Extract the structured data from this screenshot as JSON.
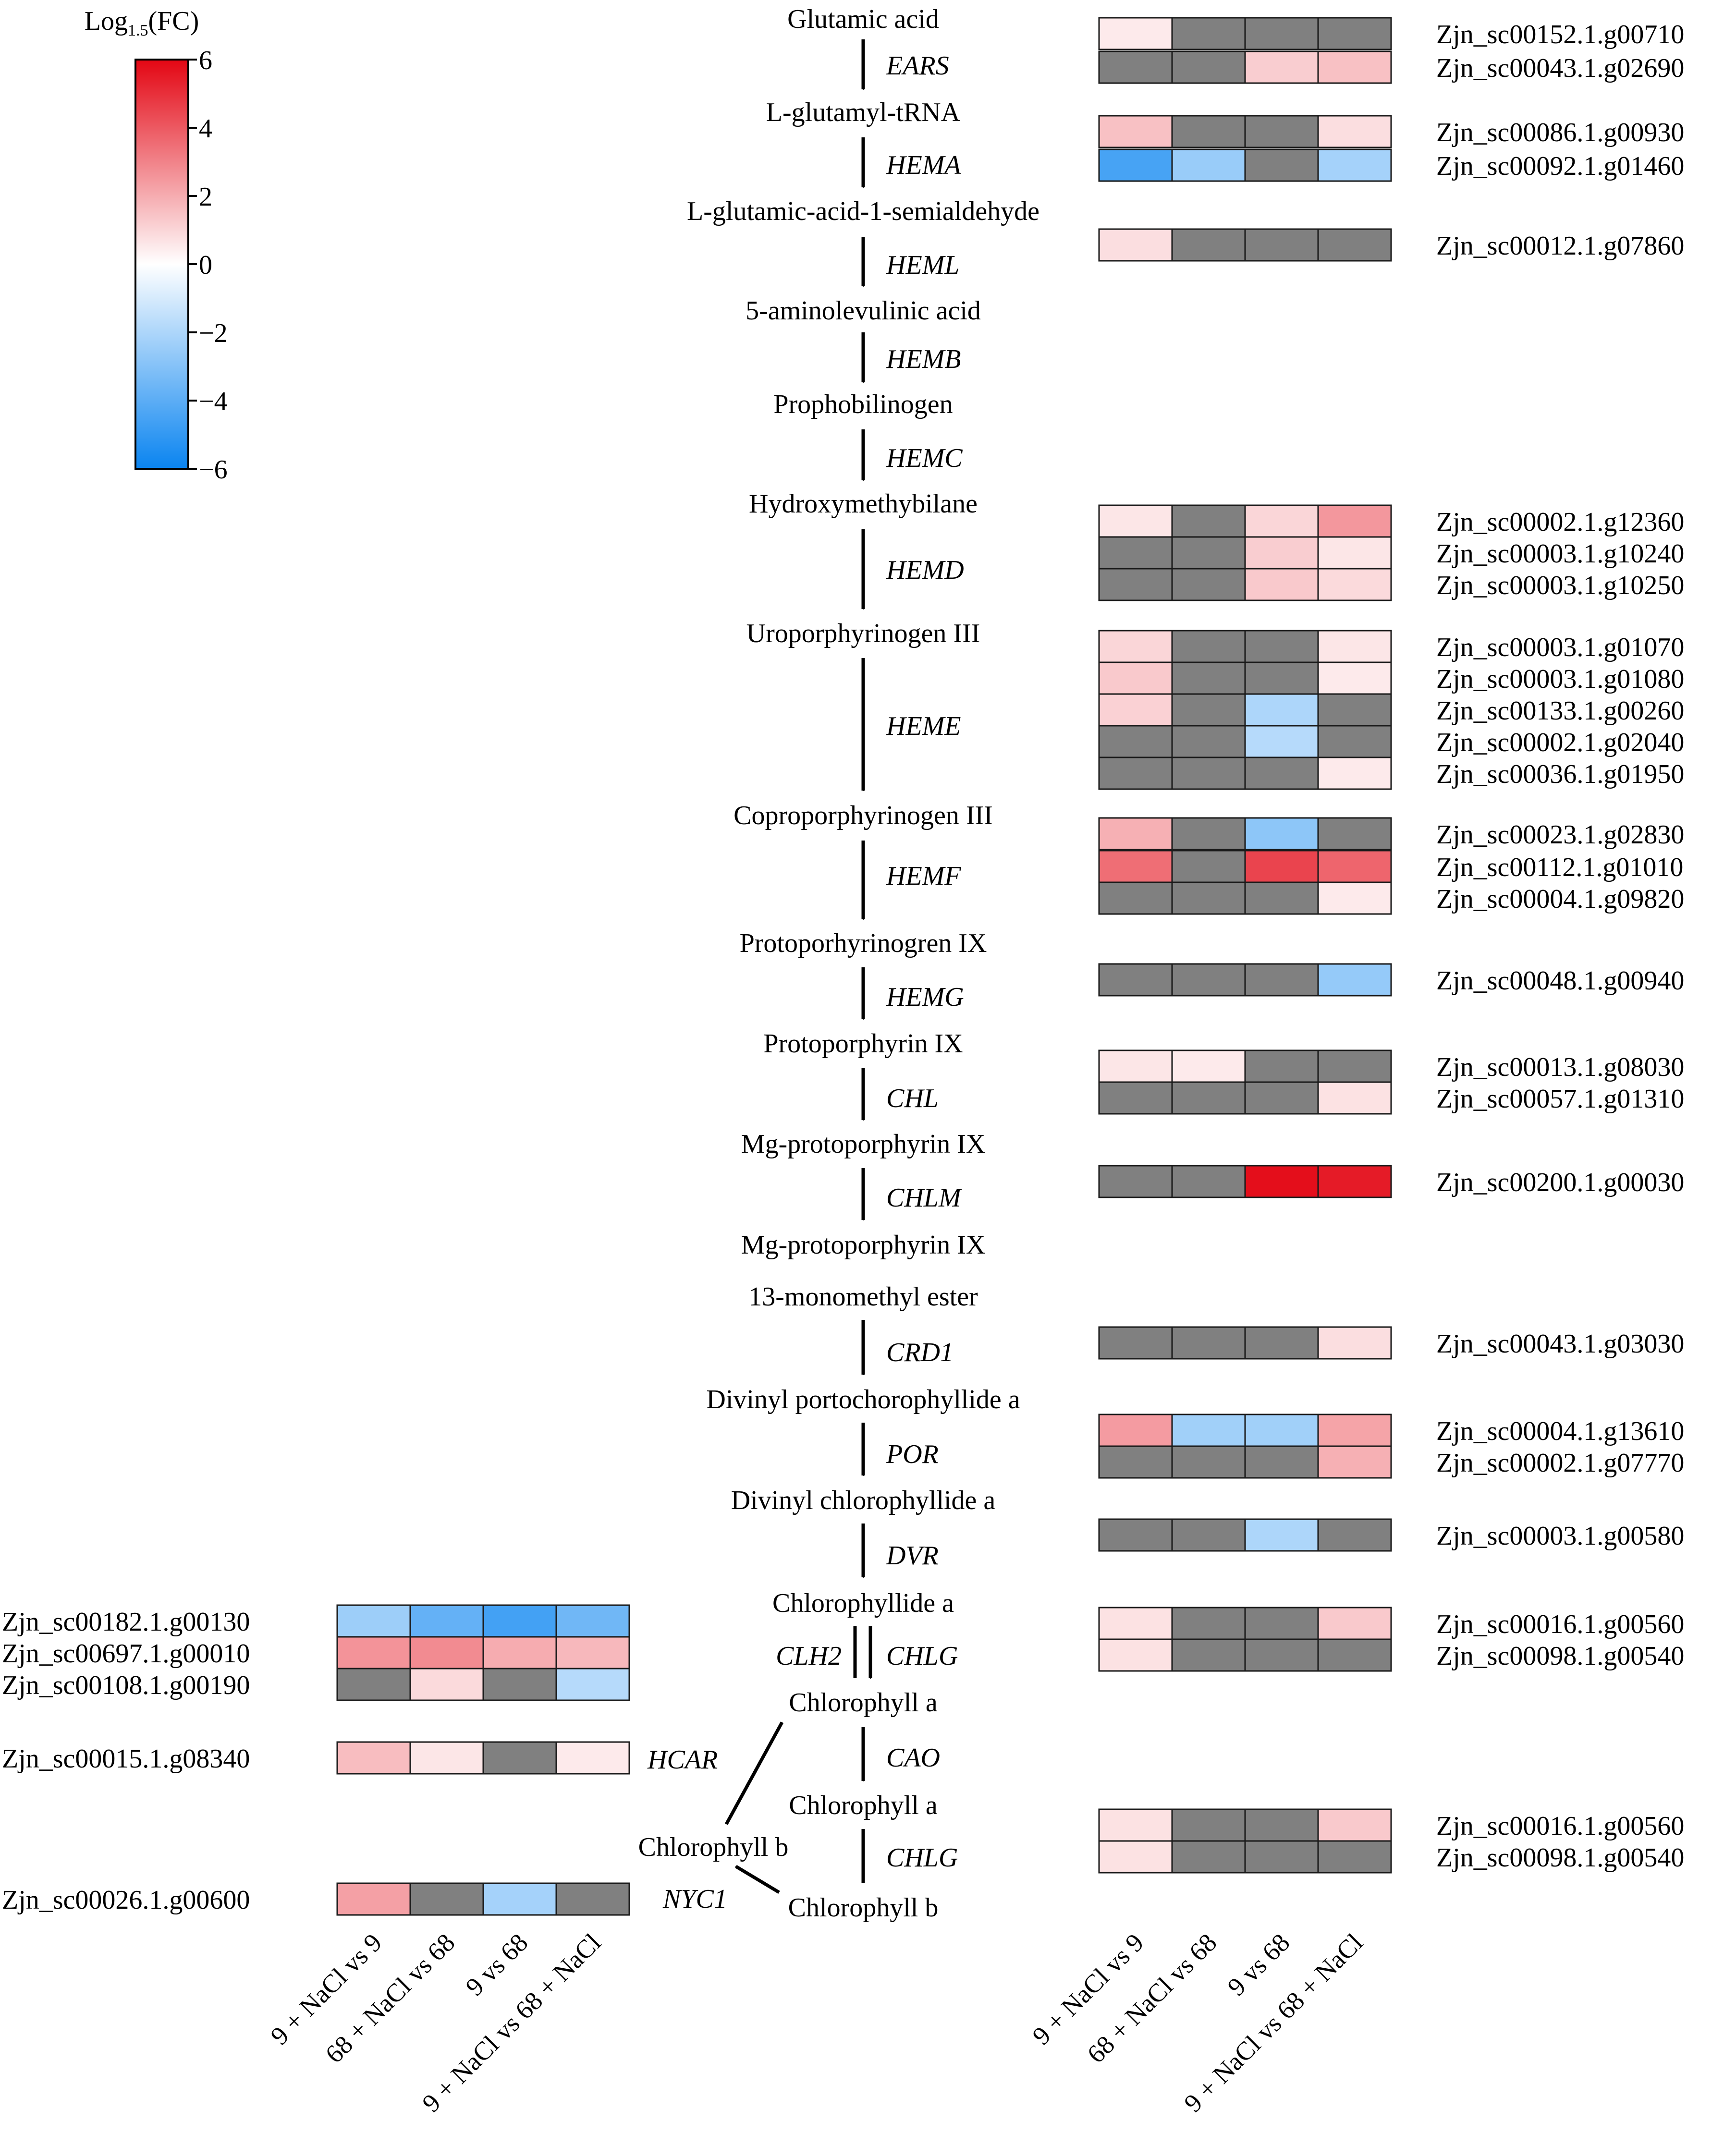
{
  "legend": {
    "title_main": "Log",
    "title_sub": "1.5",
    "title_suffix": "(FC)",
    "ticks": [
      6,
      4,
      2,
      0,
      -2,
      -4,
      -6
    ],
    "tick_labels": [
      "6",
      "4",
      "2",
      "0",
      "−2",
      "−4",
      "−6"
    ],
    "colors": {
      "high": "#e30613",
      "mid": "#ffffff",
      "low": "#0a84f0",
      "missing": "#808080"
    }
  },
  "metabolites": [
    "Glutamic acid",
    "L-glutamyl-tRNA",
    "L-glutamic-acid-1-semialdehyde",
    "5-aminolevulinic acid",
    "Prophobilinogen",
    "Hydroxymethybilane",
    "Uroporphyrinogen III",
    "Coproporphyrinogen III",
    "Protoporhyrinogren IX",
    "Protoporphyrin IX",
    "Mg-protoporphyrin IX",
    "Mg-protoporphyrin IX",
    "13-monomethyl ester",
    "Divinyl portochorophyllide a",
    "Divinyl chlorophyllide a",
    "Chlorophyllide a",
    "Chlorophyll a",
    "Chlorophyll a",
    "Chlorophyll b",
    "Chlorophyll b"
  ],
  "enzymes": [
    "EARS",
    "HEMA",
    "HEML",
    "HEMB",
    "HEMC",
    "HEMD",
    "HEME",
    "HEMF",
    "HEMG",
    "CHL",
    "CHLM",
    "CRD1",
    "POR",
    "DVR",
    "CLH2",
    "CHLG",
    "CAO",
    "CHLG",
    "HCAR",
    "NYC1"
  ],
  "columns": [
    "9 + NaCl vs 9",
    "68 + NaCl vs 68",
    "9 vs 68",
    "9 + NaCl vs 68 + NaCl"
  ],
  "heatmap_right": [
    {
      "gene": "Zjn_sc00152.1.g00710",
      "values": [
        0.5,
        null,
        null,
        null
      ]
    },
    {
      "gene": "Zjn_sc00043.1.g02690",
      "values": [
        null,
        null,
        1.2,
        1.5
      ]
    },
    {
      "gene": "Zjn_sc00086.1.g00930",
      "values": [
        1.5,
        null,
        null,
        0.8
      ]
    },
    {
      "gene": "Zjn_sc00092.1.g01460",
      "values": [
        -4.5,
        -2.5,
        null,
        -2.2
      ]
    },
    {
      "gene": "Zjn_sc00012.1.g07860",
      "values": [
        0.8,
        null,
        null,
        null
      ]
    },
    {
      "gene": "Zjn_sc00002.1.g12360",
      "values": [
        0.6,
        null,
        1.0,
        2.5
      ]
    },
    {
      "gene": "Zjn_sc00003.1.g10240",
      "values": [
        null,
        null,
        1.2,
        0.6
      ]
    },
    {
      "gene": "Zjn_sc00003.1.g10250",
      "values": [
        null,
        null,
        1.3,
        0.9
      ]
    },
    {
      "gene": "Zjn_sc00003.1.g01070",
      "values": [
        1.0,
        null,
        null,
        0.6
      ]
    },
    {
      "gene": "Zjn_sc00003.1.g01080",
      "values": [
        1.3,
        null,
        null,
        0.5
      ]
    },
    {
      "gene": "Zjn_sc00133.1.g00260",
      "values": [
        1.1,
        null,
        -2.0,
        null
      ]
    },
    {
      "gene": "Zjn_sc00002.1.g02040",
      "values": [
        null,
        null,
        -1.8,
        null
      ]
    },
    {
      "gene": "Zjn_sc00036.1.g01950",
      "values": [
        null,
        null,
        null,
        0.5
      ]
    },
    {
      "gene": "Zjn_sc00023.1.g02830",
      "values": [
        1.9,
        null,
        -2.8,
        null
      ]
    },
    {
      "gene": "Zjn_sc00112.1.g01010",
      "values": [
        3.5,
        null,
        4.5,
        3.7
      ]
    },
    {
      "gene": "Zjn_sc00004.1.g09820",
      "values": [
        null,
        null,
        null,
        0.5
      ]
    },
    {
      "gene": "Zjn_sc00048.1.g00940",
      "values": [
        null,
        null,
        null,
        -2.6
      ]
    },
    {
      "gene": "Zjn_sc00013.1.g08030",
      "values": [
        0.6,
        0.5,
        null,
        null
      ]
    },
    {
      "gene": "Zjn_sc00057.1.g01310",
      "values": [
        null,
        null,
        null,
        0.7
      ]
    },
    {
      "gene": "Zjn_sc00200.1.g00030",
      "values": [
        null,
        null,
        5.8,
        5.5
      ]
    },
    {
      "gene": "Zjn_sc00043.1.g03030",
      "values": [
        null,
        null,
        null,
        0.8
      ]
    },
    {
      "gene": "Zjn_sc00004.1.g13610",
      "values": [
        2.4,
        -2.3,
        -2.3,
        2.2
      ]
    },
    {
      "gene": "Zjn_sc00002.1.g07770",
      "values": [
        null,
        null,
        null,
        1.9
      ]
    },
    {
      "gene": "Zjn_sc00003.1.g00580",
      "values": [
        null,
        null,
        -2.0,
        null
      ]
    },
    {
      "gene": "Zjn_sc00016.1.g00560",
      "values": [
        0.7,
        null,
        null,
        1.3
      ]
    },
    {
      "gene": "Zjn_sc00098.1.g00540",
      "values": [
        0.7,
        null,
        null,
        null
      ]
    },
    {
      "gene": "Zjn_sc00016.1.g00560",
      "values": [
        0.7,
        null,
        null,
        1.3
      ]
    },
    {
      "gene": "Zjn_sc00098.1.g00540",
      "values": [
        0.7,
        null,
        null,
        null
      ]
    }
  ],
  "heatmap_left": [
    {
      "gene": "Zjn_sc00182.1.g00130",
      "values": [
        -2.4,
        -3.8,
        -4.6,
        -3.5
      ]
    },
    {
      "gene": "Zjn_sc00697.1.g00010",
      "values": [
        2.6,
        2.8,
        2.0,
        1.7
      ]
    },
    {
      "gene": "Zjn_sc00108.1.g00190",
      "values": [
        null,
        0.9,
        null,
        -1.8
      ]
    },
    {
      "gene": "Zjn_sc00015.1.g08340",
      "values": [
        1.6,
        0.6,
        null,
        0.5
      ]
    },
    {
      "gene": "Zjn_sc00026.1.g00600",
      "values": [
        2.3,
        null,
        -2.2,
        null
      ]
    }
  ]
}
